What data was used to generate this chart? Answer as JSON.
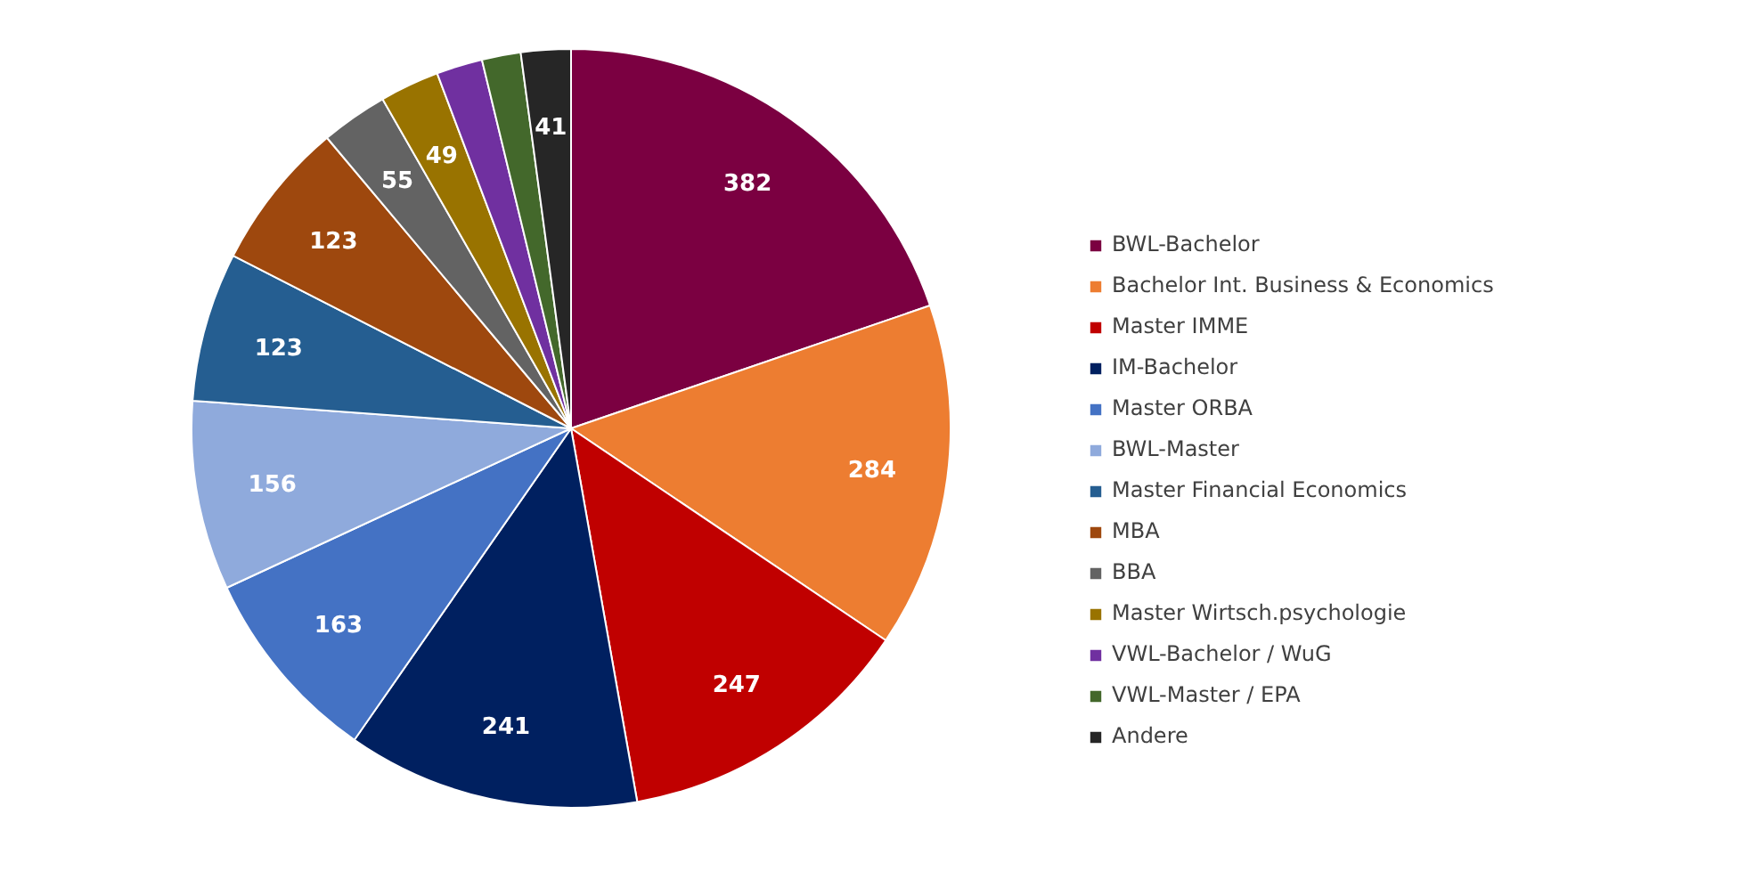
{
  "chart_data": {
    "type": "pie",
    "categories": [
      "BWL-Bachelor",
      "Bachelor Int. Business & Economics",
      "Master IMME",
      "IM-Bachelor",
      "Master ORBA",
      "BWL-Master",
      "Master Financial Economics",
      "MBA",
      "BBA",
      "Master Wirtsch.psychologie",
      "VWL-Bachelor / WuG",
      "VWL-Master / EPA",
      "Andere"
    ],
    "values": [
      382,
      284,
      247,
      241,
      163,
      156,
      123,
      123,
      55,
      49,
      38,
      32,
      41
    ],
    "colors": [
      "#7b0041",
      "#ed7d31",
      "#c00000",
      "#002060",
      "#4472c4",
      "#8faadc",
      "#255e91",
      "#9e480e",
      "#636363",
      "#997300",
      "#7030a0",
      "#43682b",
      "#262626"
    ],
    "value_labels": [
      "382",
      "284",
      "247",
      "241",
      "163",
      "156",
      "123",
      "123",
      "55",
      "49",
      null,
      null,
      "41"
    ],
    "legend": "right"
  }
}
